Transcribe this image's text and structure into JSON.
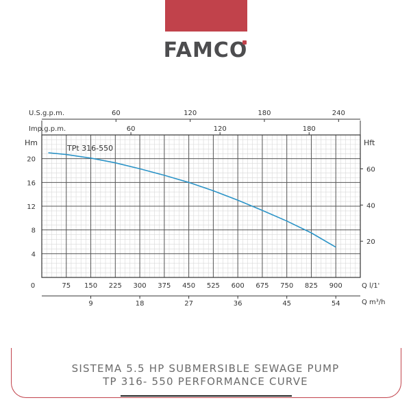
{
  "brand": {
    "logo_text": "FAMC",
    "logo_last": "O",
    "accent": "#c1424b",
    "text_color": "#4d4d4f"
  },
  "caption": {
    "line1": "SISTEMA 5.5 HP SUBMERSIBLE SEWAGE PUMP",
    "line2": "TP 316- 550 PERFORMANCE CURVE"
  },
  "chart_data": {
    "type": "line",
    "series": [
      {
        "name": "TPt 316-550",
        "color": "#2a93c7",
        "x": [
          20,
          75,
          150,
          225,
          300,
          375,
          450,
          525,
          600,
          675,
          750,
          825,
          900
        ],
        "y": [
          21.0,
          20.7,
          20.1,
          19.3,
          18.3,
          17.2,
          16.0,
          14.6,
          13.0,
          11.3,
          9.5,
          7.5,
          5.1
        ]
      }
    ],
    "x_primary": {
      "label": "Q l/1'",
      "ticks": [
        0,
        75,
        150,
        225,
        300,
        375,
        450,
        525,
        600,
        675,
        750,
        825,
        900
      ],
      "range": [
        0,
        975
      ]
    },
    "x_m3h": {
      "label": "Q m³/h",
      "ticks": [
        9,
        18,
        27,
        36,
        45,
        54
      ]
    },
    "x_usgpm": {
      "label": "U.S.g.p.m.",
      "ticks": [
        60,
        120,
        180,
        240
      ]
    },
    "x_impgpm": {
      "label": "Imp.g.p.m.",
      "ticks": [
        60,
        120,
        180
      ]
    },
    "y_left": {
      "label": "Hm",
      "ticks": [
        0,
        4,
        8,
        12,
        16,
        20
      ],
      "range": [
        0,
        24
      ]
    },
    "y_right": {
      "label": "Hft",
      "ticks": [
        20,
        40,
        60
      ]
    },
    "grid": true
  }
}
